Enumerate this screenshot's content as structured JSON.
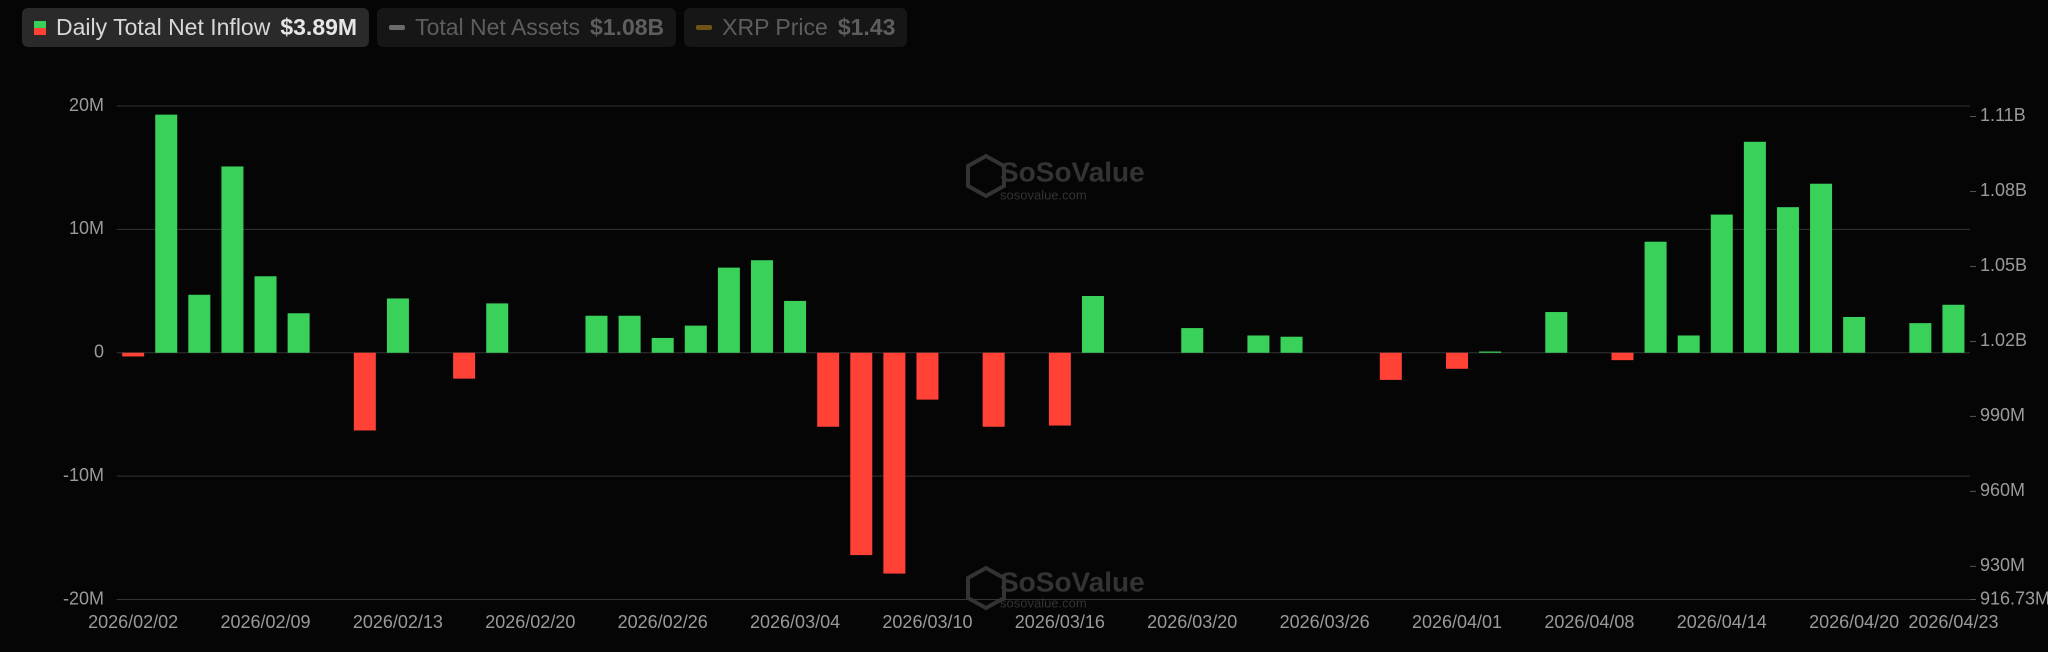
{
  "chart_data": {
    "type": "bar",
    "series": [
      {
        "name": "Daily Total Net Inflow",
        "current_label": "$3.89M",
        "color": "#3ad15a",
        "negative_color": "#ff4136",
        "values": [
          -300000,
          19300000,
          4700000,
          15100000,
          6200000,
          3200000,
          0,
          -6300000,
          4400000,
          0,
          -2100000,
          4000000,
          0,
          0,
          3000000,
          3000000,
          1200000,
          2200000,
          6900000,
          7500000,
          4200000,
          -6000000,
          -16400000,
          -17900000,
          -3800000,
          0,
          -6000000,
          0,
          -5900000,
          4600000,
          0,
          0,
          2000000,
          0,
          1400000,
          1300000,
          0,
          0,
          -2200000,
          0,
          -1300000,
          100000,
          0,
          3300000,
          0,
          -600000,
          9000000,
          1400000,
          11200000,
          17100000,
          11800000,
          13700000,
          2900000,
          0,
          2400000,
          3890000
        ]
      },
      {
        "name": "Total Net Assets",
        "current_label": "$1.08B",
        "color": "#6b6b6b",
        "axis": "y2",
        "hidden": true
      },
      {
        "name": "XRP Price",
        "current_label": "$1.43",
        "color": "#6e5516",
        "hidden": true
      }
    ],
    "categories": [
      "2026/02/02",
      null,
      null,
      null,
      "2026/02/09",
      null,
      null,
      null,
      "2026/02/13",
      null,
      null,
      null,
      "2026/02/20",
      null,
      null,
      null,
      "2026/02/26",
      null,
      null,
      null,
      "2026/03/04",
      null,
      null,
      null,
      "2026/03/10",
      null,
      null,
      null,
      "2026/03/16",
      null,
      null,
      null,
      "2026/03/20",
      null,
      null,
      null,
      "2026/03/26",
      null,
      null,
      null,
      "2026/04/01",
      null,
      null,
      null,
      "2026/04/08",
      null,
      null,
      null,
      "2026/04/14",
      null,
      null,
      null,
      "2026/04/20",
      null,
      null,
      "2026/04/23"
    ],
    "ylim": [
      -20000000,
      20000000
    ],
    "yticks": [
      {
        "value": 20000000,
        "label": "20M"
      },
      {
        "value": 10000000,
        "label": "10M"
      },
      0,
      {
        "value": -10000000,
        "label": "-10M"
      },
      {
        "value": -20000000,
        "label": "-20M"
      }
    ],
    "y2lim": [
      916730000,
      1114200000
    ],
    "y2ticks": [
      {
        "value": 1110000000,
        "label": "1.11B"
      },
      {
        "value": 1080000000,
        "label": "1.08B"
      },
      {
        "value": 1050000000,
        "label": "1.05B"
      },
      {
        "value": 1020000000,
        "label": "1.02B"
      },
      {
        "value": 990000000,
        "label": "990M"
      },
      {
        "value": 960000000,
        "label": "960M"
      },
      {
        "value": 930000000,
        "label": "930M"
      },
      {
        "value": 916730000,
        "label": "916.73M"
      }
    ],
    "grid": true,
    "watermark": {
      "brand": "SoSoValue",
      "url": "sosovalue.com"
    }
  }
}
